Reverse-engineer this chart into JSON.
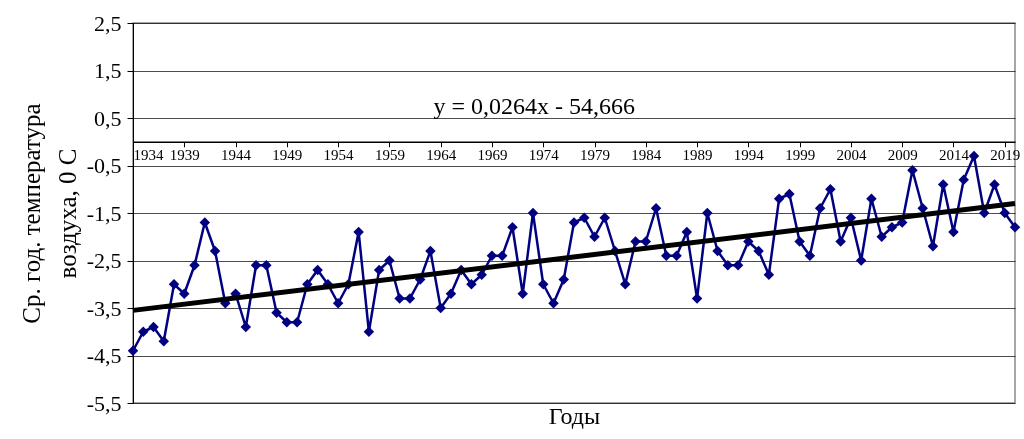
{
  "chart_data": {
    "type": "line",
    "xlabel": "Годы",
    "ylabel": "Ср. год.  температура\nвоздуха, 0 С",
    "annotations": [
      "y = 0,0264x - 54,666"
    ],
    "x": [
      1934,
      1935,
      1936,
      1937,
      1938,
      1939,
      1940,
      1941,
      1942,
      1943,
      1944,
      1945,
      1946,
      1947,
      1948,
      1949,
      1950,
      1951,
      1952,
      1953,
      1954,
      1955,
      1956,
      1957,
      1958,
      1959,
      1960,
      1961,
      1962,
      1963,
      1964,
      1965,
      1966,
      1967,
      1968,
      1969,
      1970,
      1971,
      1972,
      1973,
      1974,
      1975,
      1976,
      1977,
      1978,
      1979,
      1980,
      1981,
      1982,
      1983,
      1984,
      1985,
      1986,
      1987,
      1988,
      1989,
      1990,
      1991,
      1992,
      1993,
      1994,
      1995,
      1996,
      1997,
      1998,
      1999,
      2000,
      2001,
      2002,
      2003,
      2004,
      2005,
      2006,
      2007,
      2008,
      2009,
      2010,
      2011,
      2012,
      2013,
      2014,
      2015,
      2016,
      2017,
      2018,
      2019,
      2020
    ],
    "series": [
      {
        "color": "#000080",
        "marker": "diamond",
        "values": [
          -4.4,
          -4.0,
          -3.9,
          -4.2,
          -3.0,
          -3.2,
          -2.6,
          -1.7,
          -2.3,
          -3.4,
          -3.2,
          -3.9,
          -2.6,
          -2.6,
          -3.6,
          -3.8,
          -3.8,
          -3.0,
          -2.7,
          -3.0,
          -3.4,
          -3.0,
          -1.9,
          -4.0,
          -2.7,
          -2.5,
          -3.3,
          -3.3,
          -2.9,
          -2.3,
          -3.5,
          -3.2,
          -2.7,
          -3.0,
          -2.8,
          -2.4,
          -2.4,
          -1.8,
          -3.2,
          -1.5,
          -3.0,
          -3.4,
          -2.9,
          -1.7,
          -1.6,
          -2.0,
          -1.6,
          -2.3,
          -3.0,
          -2.1,
          -2.1,
          -1.4,
          -2.4,
          -2.4,
          -1.9,
          -3.3,
          -1.5,
          -2.3,
          -2.6,
          -2.6,
          -2.1,
          -2.3,
          -2.8,
          -1.2,
          -1.1,
          -2.1,
          -2.4,
          -1.4,
          -1.0,
          -2.1,
          -1.6,
          -2.5,
          -1.2,
          -2.0,
          -1.8,
          -1.7,
          -0.6,
          -1.4,
          -2.2,
          -0.9,
          -1.9,
          -0.8,
          -0.3,
          -1.5,
          -0.9,
          -1.5,
          -1.8
        ]
      },
      {
        "type": "line",
        "color": "#000000",
        "marker": "none",
        "x": [
          1934,
          2020
        ],
        "values": [
          -3.55,
          -1.3
        ]
      }
    ],
    "xlim": [
      1934,
      2020
    ],
    "xticks": [
      1934,
      1939,
      1944,
      1949,
      1954,
      1959,
      1964,
      1969,
      1974,
      1979,
      1984,
      1989,
      1994,
      1999,
      2004,
      2009,
      2014,
      2019
    ],
    "ylim": [
      -5.5,
      2.5
    ],
    "yticks": [
      {
        "value": 2.5,
        "label": "2,5"
      },
      {
        "value": 1.5,
        "label": "1,5"
      },
      {
        "value": 0.5,
        "label": "0,5"
      },
      {
        "value": -0.5,
        "label": "-0,5"
      },
      {
        "value": -1.5,
        "label": "-1,5"
      },
      {
        "value": -2.5,
        "label": "-2,5"
      },
      {
        "value": -3.5,
        "label": "-3,5"
      },
      {
        "value": -4.5,
        "label": "-4,5"
      },
      {
        "value": -5.5,
        "label": "-5,5"
      }
    ],
    "grid": "y",
    "line_style": "solid"
  }
}
